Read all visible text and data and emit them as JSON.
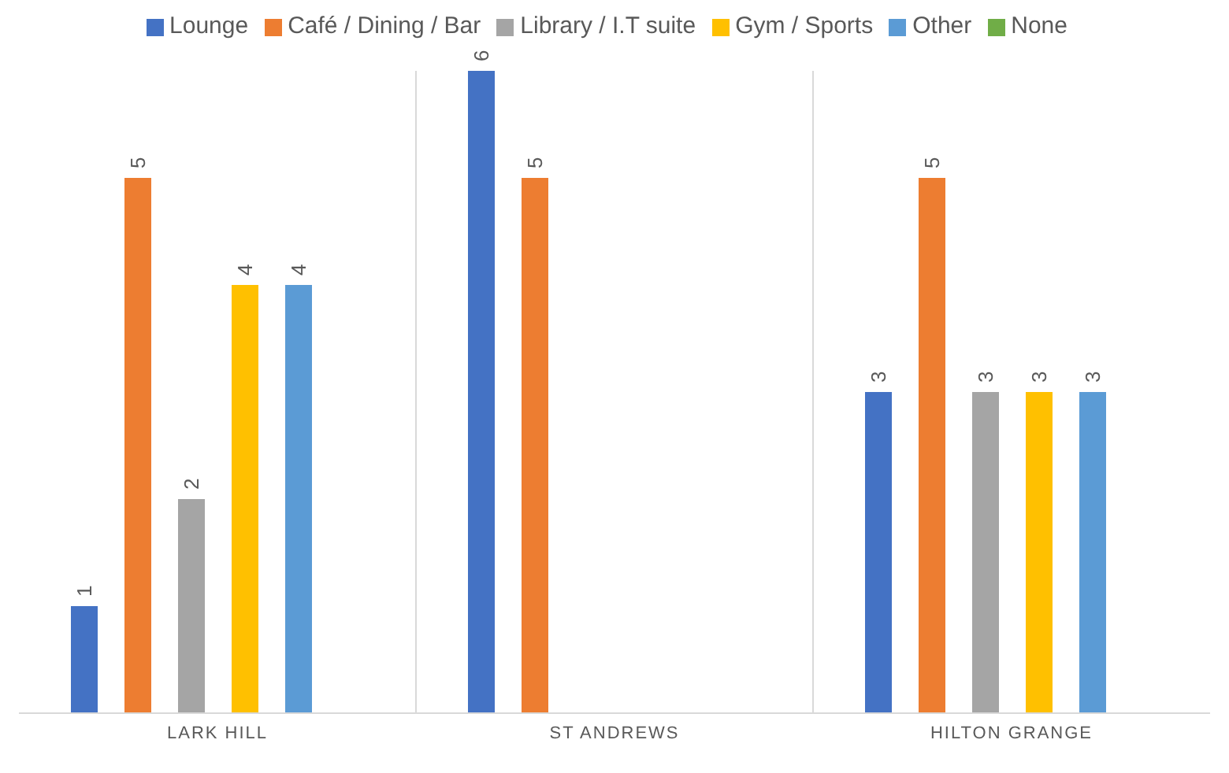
{
  "chart_data": {
    "type": "bar",
    "categories": [
      "LARK HILL",
      "ST ANDREWS",
      "HILTON GRANGE"
    ],
    "series": [
      {
        "name": "Lounge",
        "color": "#4472c4",
        "values": [
          1,
          6,
          3
        ]
      },
      {
        "name": "Café / Dining / Bar",
        "color": "#ed7d31",
        "values": [
          5,
          5,
          5
        ]
      },
      {
        "name": "Library / I.T suite",
        "color": "#a5a5a5",
        "values": [
          2,
          null,
          3
        ]
      },
      {
        "name": "Gym / Sports",
        "color": "#ffc000",
        "values": [
          4,
          null,
          3
        ]
      },
      {
        "name": "Other",
        "color": "#5b9bd5",
        "values": [
          4,
          null,
          3
        ]
      },
      {
        "name": "None",
        "color": "#70ad47",
        "values": [
          null,
          null,
          null
        ]
      }
    ],
    "data_labels": true,
    "grid": "x",
    "legend": "top"
  }
}
